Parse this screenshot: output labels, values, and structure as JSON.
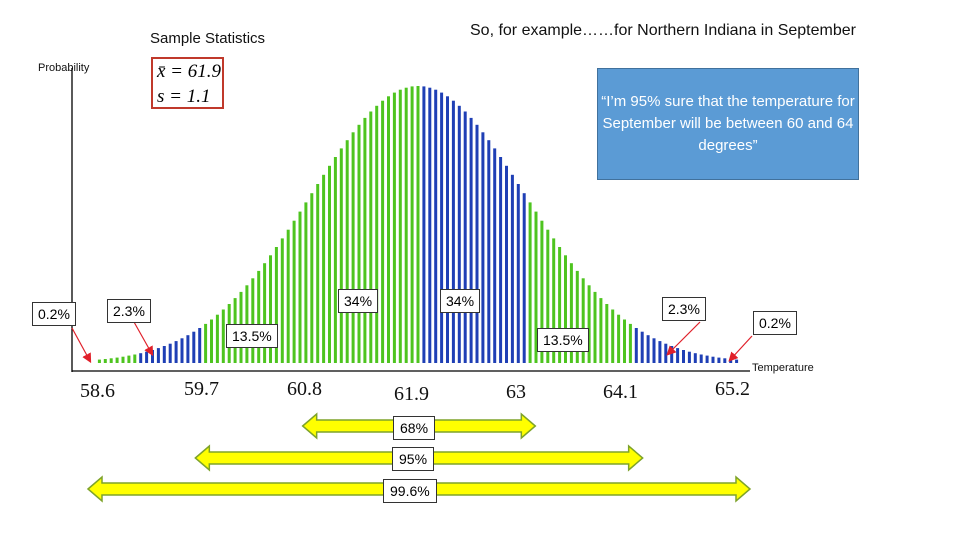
{
  "chart_data": {
    "type": "bar",
    "title": "So, for example……for Northern Indiana in September",
    "subtitle": "Sample Statistics",
    "xlabel": "Temperature",
    "ylabel": "Probability",
    "stats": {
      "mean": "x̄ = 61.9",
      "sd": "s = 1.1"
    },
    "mean": 61.9,
    "sd": 1.1,
    "x_ticks": [
      "58.6",
      "59.7",
      "60.8",
      "61.9",
      "63",
      "64.1",
      "65.2"
    ],
    "xlim": [
      58.4,
      65.4
    ],
    "colors": {
      "outer": "#1f3fb5",
      "inner": "#4ec41f",
      "arrow_fill": "#ffff00",
      "arrow_stroke": "#7ea32a"
    },
    "region_labels": {
      "left_tail": "0.2%",
      "left_2sd": "2.3%",
      "left_1sd_2sd": "13.5%",
      "left_0_1sd": "34%",
      "right_0_1sd": "34%",
      "right_1sd_2sd": "13.5%",
      "right_2sd": "2.3%",
      "right_tail": "0.2%"
    },
    "ranges": [
      {
        "label": "68%",
        "from": 60.8,
        "to": 63.0
      },
      {
        "label": "95%",
        "from": 59.7,
        "to": 64.1
      },
      {
        "label": "99.6%",
        "from": 58.6,
        "to": 65.2
      }
    ]
  },
  "callout": {
    "text": "“I’m 95% sure that the temperature for September will be between 60 and 64 degrees”"
  }
}
